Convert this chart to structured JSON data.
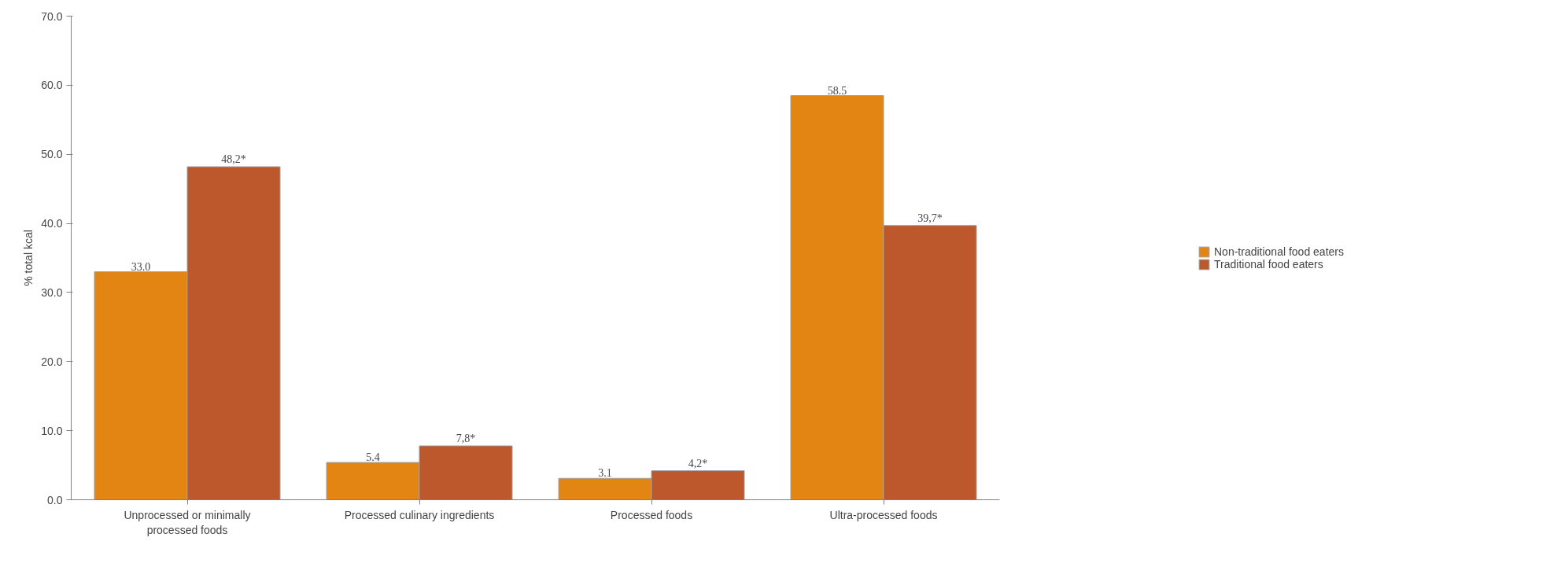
{
  "chart_data": {
    "type": "bar",
    "ylabel": "% total kcal",
    "categories": [
      "Unprocessed or minimally\nprocessed foods",
      "Processed culinary ingredients",
      "Processed foods",
      "Ultra-processed foods"
    ],
    "series": [
      {
        "name": "Non-traditional food eaters",
        "color": "#e38513",
        "values": [
          33.0,
          5.4,
          3.1,
          58.5
        ],
        "value_labels": [
          "33.0",
          "5.4",
          "3.1",
          "58.5"
        ]
      },
      {
        "name": "Traditional food eaters",
        "color": "#bc582c",
        "values": [
          48.2,
          7.8,
          4.2,
          39.7
        ],
        "value_labels": [
          "48,2*",
          "7,8*",
          "4,2*",
          "39,7*"
        ]
      }
    ],
    "ylim": [
      0,
      70
    ],
    "yticks": [
      {
        "value": 0,
        "label": "0.0"
      },
      {
        "value": 10,
        "label": "10.0"
      },
      {
        "value": 20,
        "label": "20.0"
      },
      {
        "value": 30,
        "label": "30.0"
      },
      {
        "value": 40,
        "label": "40.0"
      },
      {
        "value": 50,
        "label": "50.0"
      },
      {
        "value": 60,
        "label": "60.0"
      },
      {
        "value": 70,
        "label": "70.0"
      }
    ],
    "grid": false,
    "legend": "right"
  }
}
